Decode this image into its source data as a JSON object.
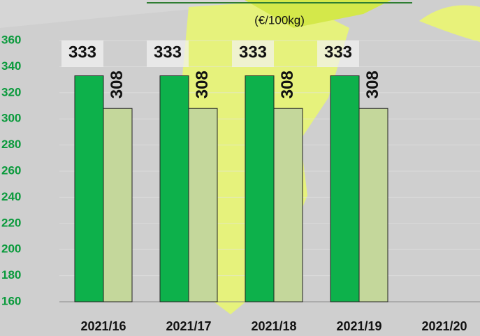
{
  "chart_data": {
    "type": "bar",
    "subtitle": "(€/100kg)",
    "categories": [
      "2021/16",
      "2021/17",
      "2021/18",
      "2021/19",
      "2021/20"
    ],
    "series": [
      {
        "color": "#0db14b",
        "values": [
          333,
          333,
          333,
          333,
          null
        ]
      },
      {
        "color": "#c4d79b",
        "values": [
          308,
          308,
          308,
          308,
          null
        ]
      }
    ],
    "ylim": [
      160,
      360
    ],
    "yticks": [
      160,
      180,
      200,
      220,
      240,
      260,
      280,
      300,
      320,
      340,
      360
    ],
    "grid": true
  }
}
